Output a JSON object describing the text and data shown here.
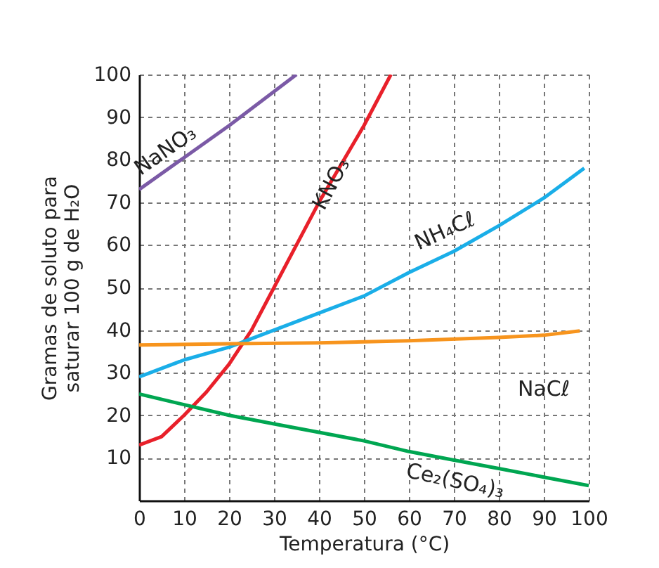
{
  "chart_data": {
    "type": "line",
    "xlabel": "Temperatura (°C)",
    "ylabel": "Gramas de soluto para saturar 100 g de H₂O",
    "xlim": [
      0,
      100
    ],
    "ylim": [
      0,
      100
    ],
    "xticks": [
      0,
      10,
      20,
      30,
      40,
      50,
      60,
      70,
      80,
      90,
      100
    ],
    "yticks": [
      10,
      20,
      30,
      40,
      50,
      60,
      70,
      80,
      90,
      100
    ],
    "grid": true,
    "legend": false,
    "line_style": "solid",
    "marker": "none",
    "series": [
      {
        "name": "NaNO₃",
        "color": "#7b5aa6",
        "x": [
          0,
          10,
          20,
          30,
          35
        ],
        "values": [
          73,
          80.5,
          88,
          96,
          100
        ]
      },
      {
        "name": "KNO₃",
        "color": "#e8202a",
        "x": [
          0,
          5,
          10,
          15,
          20,
          25,
          30,
          35,
          40,
          45,
          50,
          56
        ],
        "values": [
          13,
          15,
          20,
          25.5,
          32,
          40,
          50,
          60,
          70,
          79,
          88,
          100
        ]
      },
      {
        "name": "NH₄Cℓ",
        "color": "#1aaee8",
        "x": [
          0,
          10,
          20,
          30,
          40,
          50,
          60,
          70,
          80,
          90,
          99
        ],
        "values": [
          29,
          33,
          36,
          40,
          44,
          48,
          53.5,
          58.5,
          64.5,
          71,
          78
        ]
      },
      {
        "name": "NaCℓ",
        "color": "#f7941d",
        "x": [
          0,
          20,
          40,
          60,
          80,
          90,
          98
        ],
        "values": [
          36.5,
          36.8,
          37,
          37.5,
          38.3,
          38.8,
          39.8
        ]
      },
      {
        "name": "Ce₂(SO₄)₃",
        "color": "#00a651",
        "x": [
          0,
          10,
          20,
          30,
          40,
          50,
          60,
          70,
          80,
          90,
          100
        ],
        "values": [
          25,
          22.5,
          20,
          18,
          16,
          14,
          11.5,
          9.5,
          7.5,
          5.5,
          3.5
        ]
      }
    ]
  }
}
